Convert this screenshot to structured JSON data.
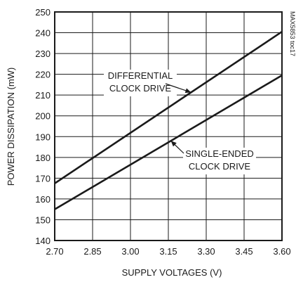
{
  "chart_data": {
    "type": "line",
    "x": [
      2.7,
      3.6
    ],
    "series": [
      {
        "name": "DIFFERENTIAL CLOCK DRIVE",
        "x": [
          2.7,
          3.6
        ],
        "values": [
          167.5,
          240.5
        ]
      },
      {
        "name": "SINGLE-ENDED CLOCK DRIVE",
        "x": [
          2.7,
          3.6
        ],
        "values": [
          155.0,
          219.5
        ]
      }
    ],
    "xlabel": "SUPPLY VOLTAGES (V)",
    "ylabel": "POWER DISSIPATION (mW)",
    "xlim": [
      2.7,
      3.6
    ],
    "ylim": [
      140,
      250
    ],
    "xticks": [
      "2.70",
      "2.85",
      "3.00",
      "3.15",
      "3.30",
      "3.45",
      "3.60"
    ],
    "yticks": [
      "140",
      "150",
      "160",
      "170",
      "180",
      "190",
      "200",
      "210",
      "220",
      "230",
      "240",
      "250"
    ],
    "grid": true,
    "annotations": [
      {
        "lines": [
          "DIFFERENTIAL",
          "CLOCK DRIVE"
        ],
        "target_series": 0
      },
      {
        "lines": [
          "SINGLE-ENDED",
          "CLOCK DRIVE"
        ],
        "target_series": 1
      }
    ],
    "side_label": "MAX5853 toc17"
  }
}
